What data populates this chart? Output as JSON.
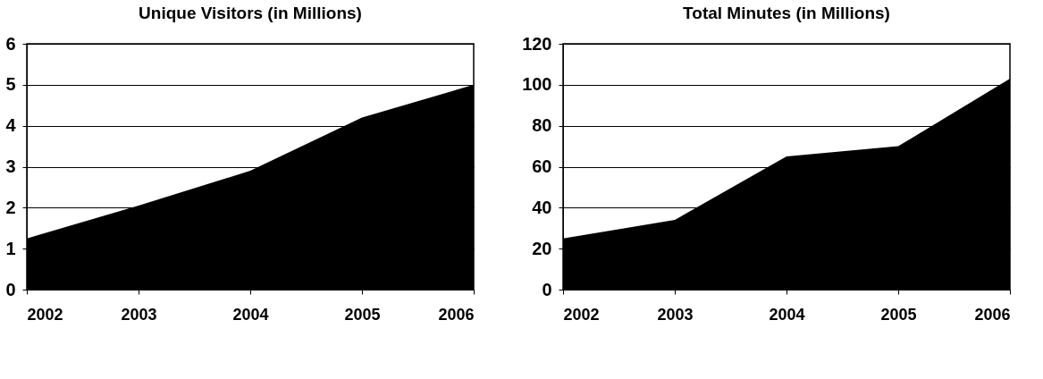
{
  "chart_data": [
    {
      "type": "area",
      "title": "Unique Visitors (in Millions)",
      "categories": [
        "2002",
        "2003",
        "2004",
        "2005",
        "2006"
      ],
      "values": [
        1.25,
        2.05,
        2.9,
        4.2,
        5.0
      ],
      "color": "#000000",
      "ylim": [
        0,
        6
      ],
      "yticks": [
        0,
        1,
        2,
        3,
        4,
        5,
        6
      ],
      "grid": "y"
    },
    {
      "type": "area",
      "title": "Total Minutes (in Millions)",
      "categories": [
        "2002",
        "2003",
        "2004",
        "2005",
        "2006"
      ],
      "values": [
        25,
        34,
        65,
        70,
        103
      ],
      "color": "#000000",
      "ylim": [
        0,
        120
      ],
      "yticks": [
        0,
        20,
        40,
        60,
        80,
        100,
        120
      ],
      "grid": "y"
    }
  ]
}
